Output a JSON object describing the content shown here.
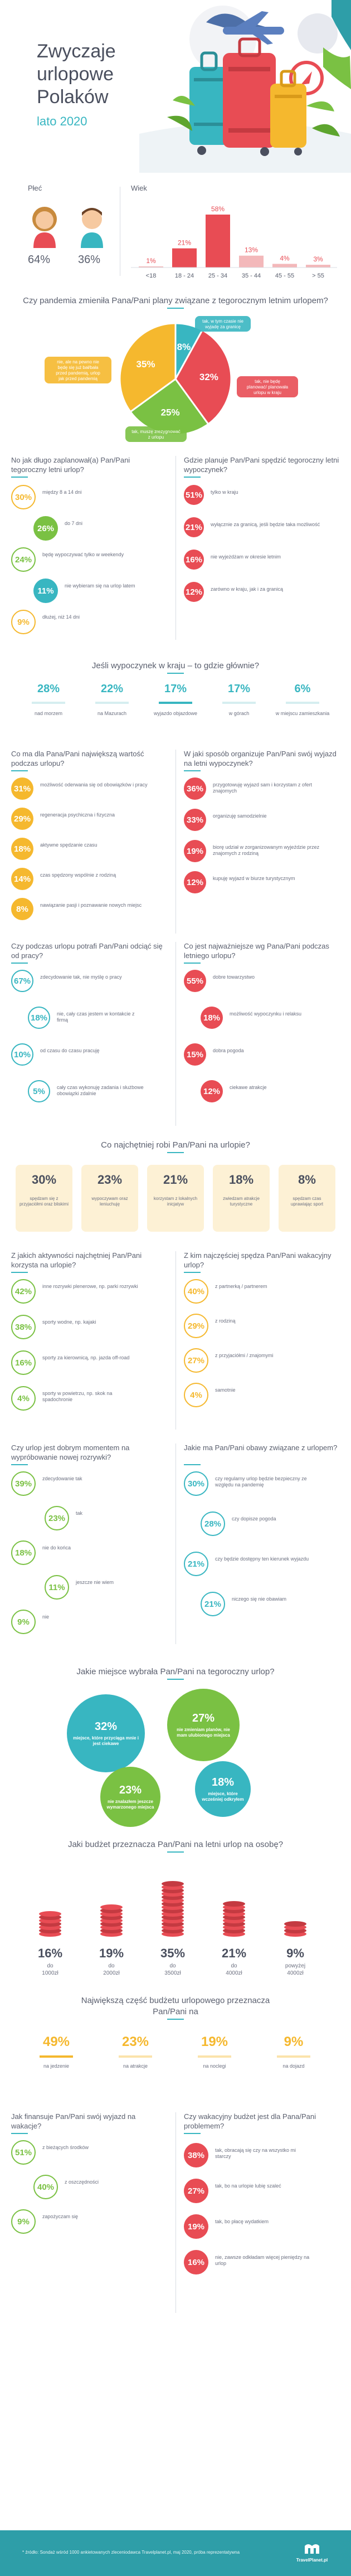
{
  "header": {
    "title_lines": [
      "Zwyczaje",
      "urlopowe",
      "Polaków"
    ],
    "subtitle": "lato 2020"
  },
  "colors": {
    "teal": "#38b6c1",
    "red": "#e84c54",
    "yellow": "#f5b82e",
    "green": "#7ac143",
    "text": "#5a5f6e"
  },
  "chart_data": [
    {
      "id": "gender",
      "type": "bar",
      "title": "Płeć",
      "categories": [
        "kobiety",
        "mężczyźni"
      ],
      "values": [
        64,
        36
      ],
      "unit": "%"
    },
    {
      "id": "age",
      "type": "bar",
      "title": "Wiek",
      "categories": [
        "<18",
        "18-24",
        "25-34",
        "35-44",
        "45-55",
        ">55"
      ],
      "values": [
        1,
        21,
        58,
        13,
        4,
        3
      ],
      "unit": "%"
    },
    {
      "id": "pandemic",
      "type": "pie",
      "title": "Czy pandemia zmieniła Pana/Pani plany związane z tegorocznym letnim urlopem?",
      "slices": [
        {
          "label": "tak, w tym czasie nie wyjadę za granicę",
          "value": 8
        },
        {
          "label": "tak, nie będę planować/planowała urlopu w kraju",
          "value": 32
        },
        {
          "label": "tak, muszę zrezygnować z urlopu",
          "value": 25
        },
        {
          "label": "nie, ale na pewno nie będę się już bał/bała przed pandemią, urlop jak przed pandemią",
          "value": 35
        }
      ]
    },
    {
      "id": "length",
      "type": "bar",
      "title": "No jak długo zaplanował(a) Pan/Pani tegoroczny letni urlop?",
      "categories": [
        "między 8 a 14 dni",
        "do 7 dni",
        "będę wypoczywać tylko w weekendy",
        "nie wybieram się na urlop latem",
        "dłużej, niż 14 dni"
      ],
      "values": [
        30,
        26,
        24,
        11,
        9
      ],
      "unit": "%"
    },
    {
      "id": "where",
      "type": "bar",
      "title": "Gdzie planuje Pan/Pani spędzić tegoroczny letni wypoczynek?",
      "categories": [
        "tylko w kraju",
        "wyłącznie za granicą, jeśli będzie taka możliwość",
        "nie wyjeżdżam w okresie letnim",
        "zarówno w kraju, jak i za granicą"
      ],
      "values": [
        51,
        21,
        16,
        12
      ],
      "unit": "%"
    },
    {
      "id": "destination",
      "type": "bar",
      "title": "Jeśli wypoczynek w kraju – to gdzie głównie?",
      "categories": [
        "nad morzem",
        "na Mazurach",
        "wyjazdo objazdowe",
        "w górach",
        "w miejscu zamieszkania"
      ],
      "values": [
        28,
        22,
        17,
        17,
        6
      ],
      "unit": "%"
    },
    {
      "id": "value",
      "type": "bar",
      "title": "Co ma dla Pana/Pani największą wartość podczas urlopu?",
      "categories": [
        "możliwość oderwania się od obowiązków i pracy",
        "regeneracja psychiczna i fizyczna",
        "aktywne spędzanie czasu",
        "czas spędzony wspólnie z rodziną",
        "nawiązanie pasji i poznawanie nowych miejsc"
      ],
      "values": [
        31,
        29,
        18,
        14,
        8
      ],
      "unit": "%"
    },
    {
      "id": "organization",
      "type": "bar",
      "title": "W jaki sposób organizuje Pan/Pani swój wyjazd na letni wypoczynek?",
      "categories": [
        "przygotowuję wyjazd sam i korzystam z ofert znajomych",
        "organizuję samodzielnie",
        "biorę udział w zorganizowanym wyjeździe przez znajomych z rodziną",
        "kupuję wyjazd w biurze turystycznym"
      ],
      "values": [
        36,
        33,
        19,
        12
      ],
      "unit": "%"
    },
    {
      "id": "disconnect",
      "type": "bar",
      "title": "Czy podczas urlopu potrafi Pan/Pani odciąć się od pracy?",
      "categories": [
        "zdecydowanie tak, nie myślę o pracy",
        "nie, cały czas jestem w kontakcie z firmą",
        "od czasu do czasu pracuję",
        "cały czas wykonuję zadania i służbowe obowiązki zdalnie"
      ],
      "values": [
        67,
        18,
        10,
        5
      ],
      "unit": "%"
    },
    {
      "id": "important",
      "type": "bar",
      "title": "Co jest najważniejsze wg Pana/Pani podczas letniego urlopu?",
      "categories": [
        "dobre towarzystwo",
        "możliwość wypoczynku i relaksu",
        "dobra pogoda",
        "ciekawe atrakcje"
      ],
      "values": [
        55,
        18,
        15,
        12
      ],
      "unit": "%"
    },
    {
      "id": "activities",
      "type": "bar",
      "title": "Co najchętniej robi Pan/Pani na urlopie?",
      "categories": [
        "spędzam się z przyjaciółmi oraz bliskimi",
        "wypoczywam oraz leniuchuję",
        "korzystam z lokalnych inicjatyw",
        "zwiedzam atrakcje turystyczne",
        "spędzam czas uprawiając sport"
      ],
      "values": [
        30,
        23,
        21,
        18,
        8
      ],
      "unit": "%"
    },
    {
      "id": "activity_type",
      "type": "bar",
      "title": "Z jakich aktywności najchętniej Pan/Pani korzysta na urlopie?",
      "categories": [
        "inne rozrywki plenerowe, np. parki rozrywki",
        "sporty wodne, np. kajaki",
        "sporty za kierownicą, np. jazda off-road",
        "sporty w powietrzu, np. skok na spadochronie"
      ],
      "values": [
        42,
        38,
        16,
        4
      ],
      "unit": "%"
    },
    {
      "id": "with_whom",
      "type": "bar",
      "title": "Z kim najczęściej spędza Pan/Pani wakacyjny urlop?",
      "categories": [
        "z partnerką / partnerem",
        "z rodziną",
        "z przyjaciółmi / znajomymi",
        "samotnie"
      ],
      "values": [
        40,
        29,
        27,
        4
      ],
      "unit": "%"
    },
    {
      "id": "time_to_try",
      "type": "bar",
      "title": "Czy urlop jest dobrym momentem na wypróbowanie nowej rozrywki?",
      "categories": [
        "zdecydowanie tak",
        "tak",
        "nie do końca",
        "jeszcze nie wiem",
        "nie"
      ],
      "values": [
        39,
        23,
        18,
        11,
        9
      ],
      "unit": "%"
    },
    {
      "id": "concerns",
      "type": "bar",
      "title": "Jakie ma Pan/Pani obawy związane z urlopem?",
      "categories": [
        "czy regularny urlop będzie bezpieczny ze względu na pandemię",
        "czy dopisze pogoda",
        "czy będzie dostępny ten kierunek wyjazdu",
        "niczego się nie obawiam"
      ],
      "values": [
        30,
        28,
        21,
        21
      ],
      "unit": "%"
    },
    {
      "id": "place",
      "type": "pie",
      "title": "Jakie miejsce wybrała Pan/Pani na tegoroczny urlop?",
      "slices": [
        {
          "label": "miejsce, które przyciąga mnie i jest ciekawe",
          "value": 32
        },
        {
          "label": "nie zmieniam planów, nie mam ulubionego miejsca",
          "value": 27
        },
        {
          "label": "nie znalazłem jeszcze wymarzonego miejsca",
          "value": 23
        },
        {
          "label": "miejsce, które wcześniej odkryłem",
          "value": 18
        }
      ]
    },
    {
      "id": "budget_per_person",
      "type": "bar",
      "title": "Jaki budżet przeznacza Pan/Pani na letni urlop na osobę?",
      "categories": [
        "do 1000zł",
        "do 2000zł",
        "do 3500zł",
        "do 4000zł",
        "powyżej 4000zł"
      ],
      "values": [
        16,
        19,
        35,
        21,
        9
      ],
      "unit": "%"
    },
    {
      "id": "budget_share",
      "type": "bar",
      "title": "Największą część budżetu urlopowego przeznacza Pan/Pani na",
      "categories": [
        "na jedzenie",
        "na atrakcje",
        "na noclegi",
        "na dojazd"
      ],
      "values": [
        49,
        23,
        19,
        9
      ],
      "unit": "%"
    },
    {
      "id": "financing",
      "type": "bar",
      "title": "Jak finansuje Pan/Pani swój wyjazd na wakacje?",
      "categories": [
        "z bieżących środków",
        "z oszczędności",
        "zapożyczam się"
      ],
      "values": [
        51,
        40,
        9
      ],
      "unit": "%"
    },
    {
      "id": "overrun",
      "type": "bar",
      "title": "Czy wakacyjny budżet jest dla Pana/Pani problemem?",
      "categories": [
        "tak, obracają się czy na wszystko mi starczy",
        "tak, bo na urlopie lubię szaleć",
        "tak, bo płacę wydatkiem",
        "nie, zawsze odkładam więcej pieniędzy na urlop"
      ],
      "values": [
        38,
        27,
        19,
        16
      ],
      "unit": "%"
    }
  ],
  "labels": {
    "gender_title": "Płeć",
    "age_title": "Wiek",
    "gender_women": "64%",
    "gender_men": "36%",
    "age_vals": [
      "1%",
      "21%",
      "58%",
      "13%",
      "4%",
      "3%"
    ],
    "age_cats": [
      "<18",
      "18 - 24",
      "25 - 34",
      "35 - 44",
      "45 - 55",
      "> 55"
    ],
    "pandemic_title": "Czy pandemia zmieniła Pana/Pani plany związane z tegorocznym letnim urlopem?",
    "pandemic_slices": [
      "8%",
      "32%",
      "25%",
      "35%"
    ],
    "pandemic_labels": [
      "tak, w tym czasie nie wyjadę za granicę",
      "tak, nie będę planować/ planowała urlopu w kraju",
      "tak, muszę zrezygnować z urlopu",
      "nie, ale na pewno nie będę się już bał/bała przed pandemią, urlop jak przed pandemią"
    ],
    "footer": "* źródło: Sondaż wśród 1000 ankietowanych zleceniodawca Travelplanet.pl, maj 2020, próba reprezentatywna",
    "brand": "TravelPlanet.pl"
  }
}
